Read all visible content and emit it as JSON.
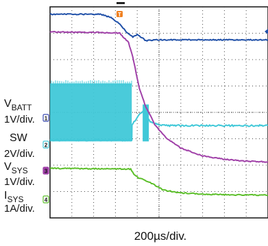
{
  "chart_data": {
    "type": "line",
    "title": "",
    "xlabel": "200µs/div.",
    "grid": "on",
    "trigger_marker": "T",
    "colors": {
      "V_BATT": "#2050a8",
      "SW": "#40c8d8",
      "V_SYS": "#a040a8",
      "I_SYS": "#5cbf2a",
      "trigger": "#f08020"
    },
    "channels": [
      {
        "name": "V_BATT",
        "main": "V",
        "sub": "BATT",
        "scale": "1V/div.",
        "marker": "1"
      },
      {
        "name": "SW",
        "main": "SW",
        "sub": "",
        "scale": "2V/div.",
        "marker": "2"
      },
      {
        "name": "V_SYS",
        "main": "V",
        "sub": "SYS",
        "scale": "1V/div.",
        "marker": "3"
      },
      {
        "name": "I_SYS",
        "main": "I",
        "sub": "SYS",
        "scale": "1A/div.",
        "marker": "4"
      }
    ],
    "xlim": [
      0,
      10
    ],
    "ylim": [
      0,
      8
    ],
    "series": [
      {
        "name": "V_BATT",
        "x": [
          0,
          2.3,
          2.8,
          3.2,
          3.5,
          3.8,
          4.0,
          4.4,
          4.8,
          10
        ],
        "y": [
          7.72,
          7.72,
          7.6,
          7.35,
          7.05,
          6.85,
          6.95,
          6.72,
          6.75,
          6.75
        ]
      },
      {
        "name": "V_SYS",
        "x": [
          0,
          2.8,
          3.2,
          3.6,
          3.8,
          4.1,
          4.4,
          4.8,
          5.3,
          6.0,
          7.0,
          8.0,
          9.0,
          10
        ],
        "y": [
          7.05,
          7.02,
          7.0,
          6.65,
          6.1,
          4.9,
          4.2,
          3.55,
          3.05,
          2.65,
          2.35,
          2.22,
          2.15,
          2.12
        ]
      },
      {
        "name": "I_SYS",
        "x": [
          0,
          3.7,
          3.9,
          4.1,
          4.3,
          4.7,
          5.2,
          6.0,
          7.0,
          8.0,
          10
        ],
        "y": [
          1.88,
          1.85,
          1.6,
          1.5,
          1.45,
          1.3,
          1.05,
          0.95,
          0.9,
          0.88,
          0.86
        ]
      },
      {
        "name": "SW",
        "x": [
          0,
          3.75,
          3.76,
          4.0,
          4.3,
          4.6,
          4.9,
          5.3,
          10
        ],
        "y": [
          2.95,
          2.95,
          3.55,
          3.8,
          4.1,
          3.65,
          3.55,
          3.5,
          3.5
        ],
        "high": 5.1,
        "low": 2.9,
        "switching_until": 3.75
      }
    ]
  }
}
